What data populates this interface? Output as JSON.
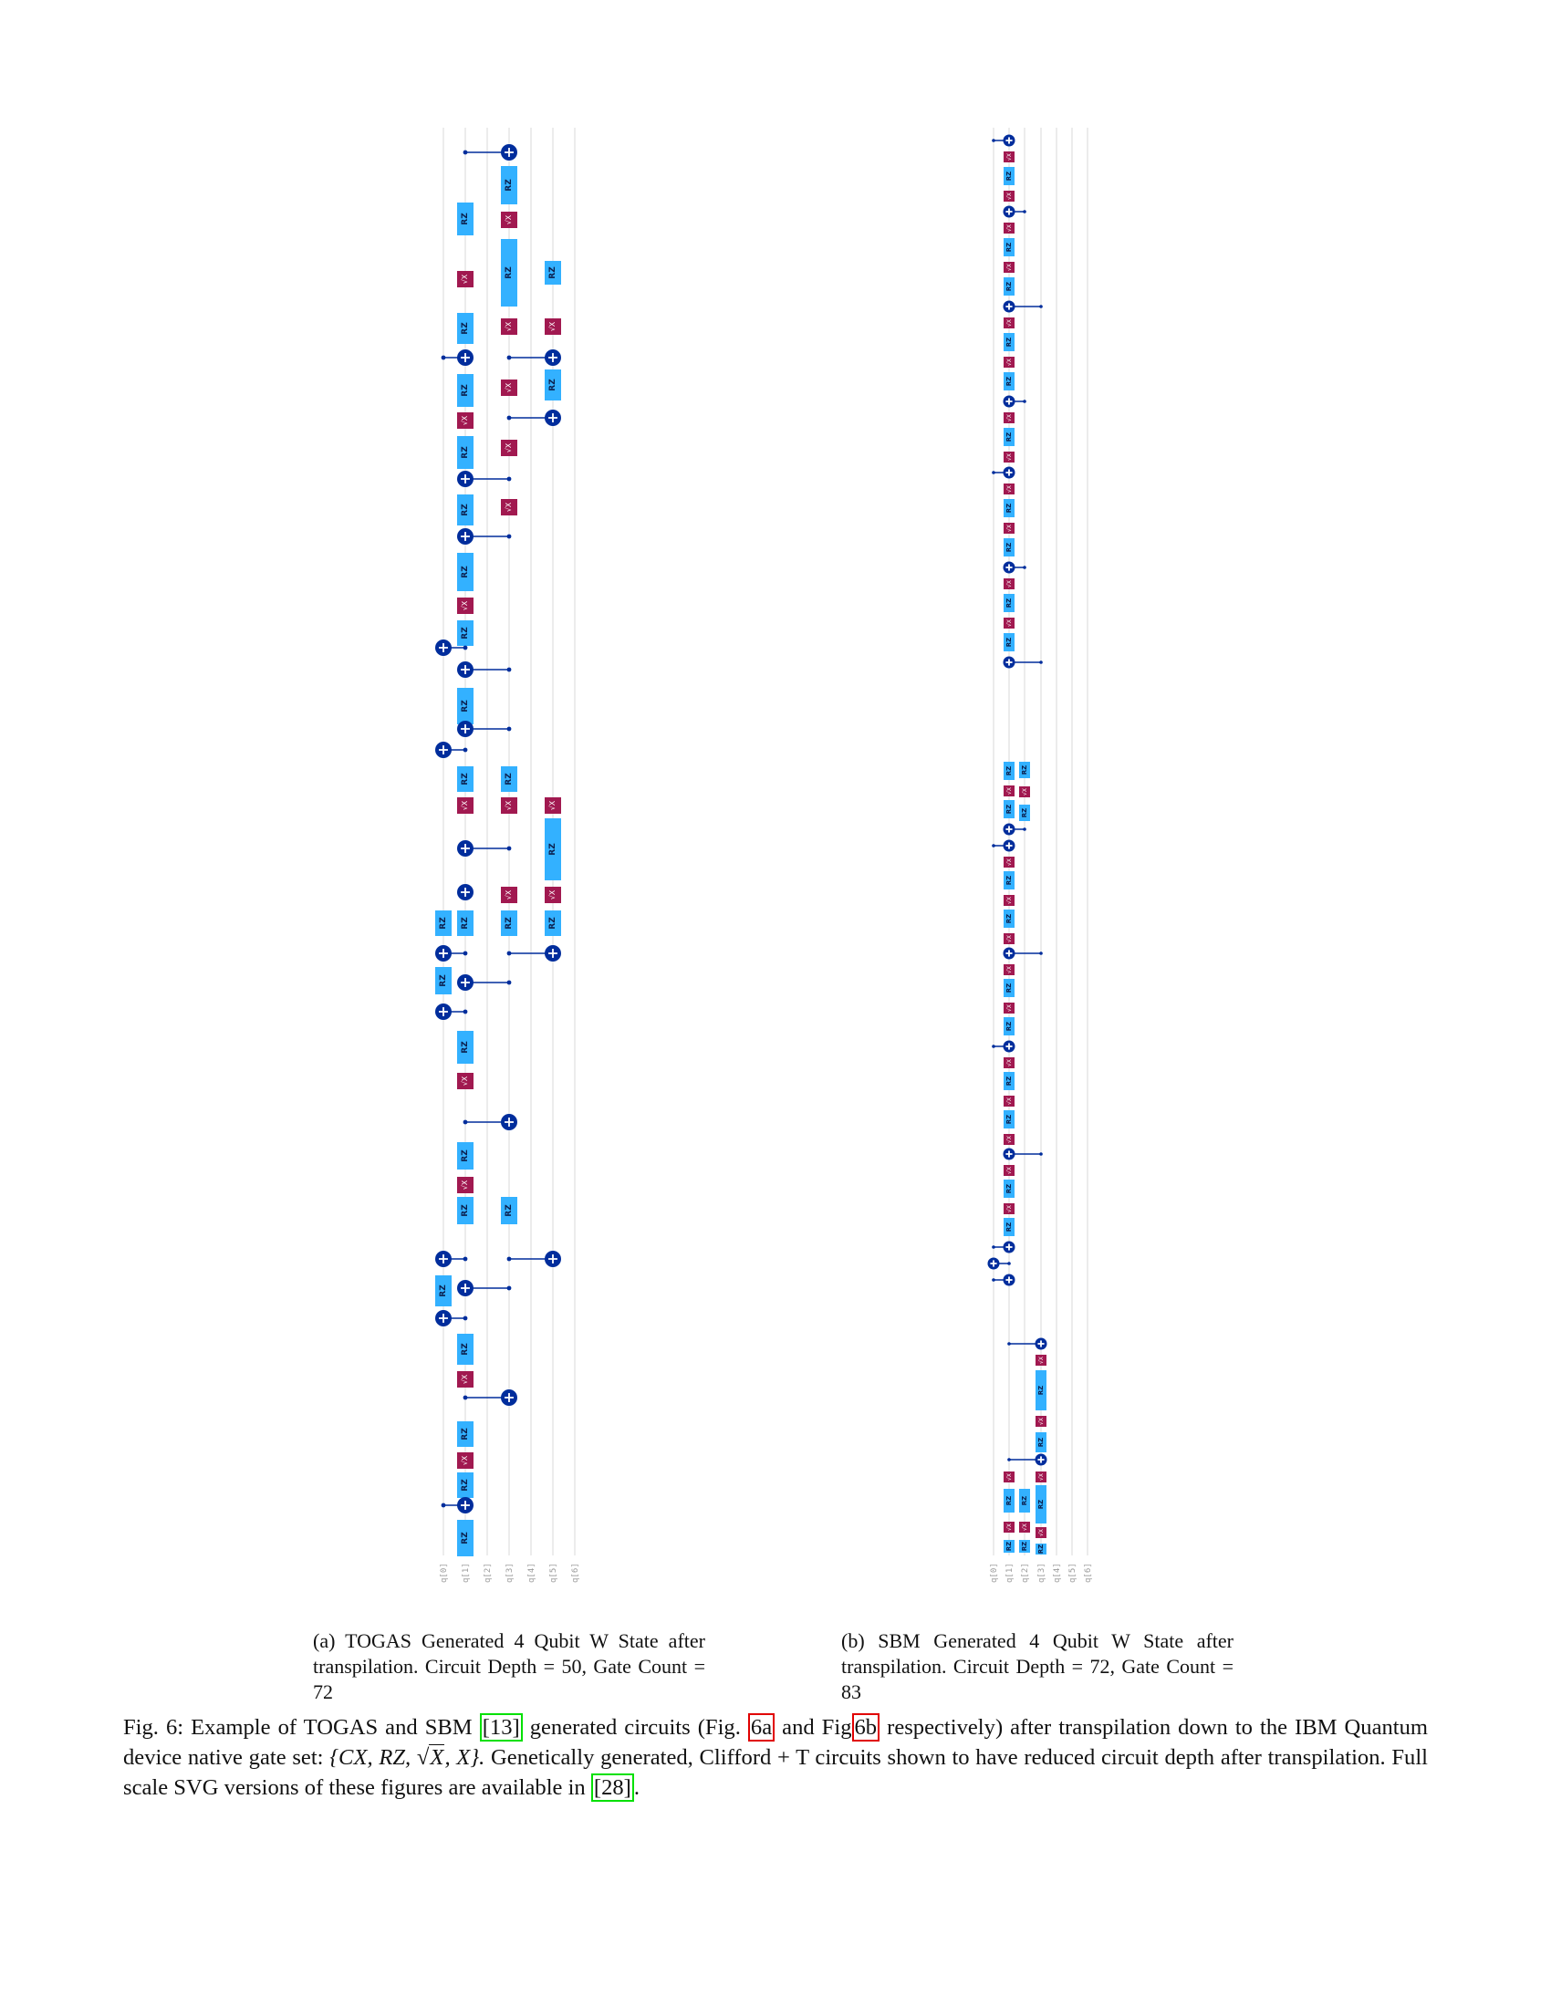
{
  "figures": [
    {
      "id": "a",
      "qubit_labels": [
        "q[0]",
        "q[1]",
        "q[2]",
        "q[3]",
        "q[4]",
        "q[5]",
        "q[6]"
      ],
      "rz_label": "RZ",
      "sx_label": "√X",
      "subcaption_label": "(a)",
      "subcaption_text": "TOGAS Generated 4 Qubit W State after transpilation. Circuit Depth = 50, Gate Count = 72"
    },
    {
      "id": "b",
      "qubit_labels": [
        "q[0]",
        "q[1]",
        "q[2]",
        "q[3]",
        "q[4]",
        "q[5]",
        "q[6]"
      ],
      "rz_label": "RZ",
      "sx_label": "√X",
      "subcaption_label": "(b)",
      "subcaption_text": "SBM Generated 4 Qubit W State after transpilation. Circuit Depth = 72, Gate Count = 83"
    }
  ],
  "caption": {
    "label": "Fig. 6:",
    "text_1": "Example of TOGAS and SBM",
    "ref_13": "[13]",
    "text_2": "generated circuits (Fig.",
    "ref_6a": "6a",
    "text_3": "and Fig",
    "ref_6b": "6b",
    "text_4": "respectively) after transpilation down to the IBM Quantum device native gate set:",
    "gate_set_open": "{CX, RZ,",
    "sqrt_symbol": "√",
    "gate_set_sqrt_arg": "X",
    "gate_set_close": ", X}.",
    "text_5": "Genetically generated, Clifford + T circuits shown to have reduced circuit depth after transpilation. Full scale SVG versions of these figures are available in",
    "ref_28": "[28]",
    "text_6": "."
  }
}
